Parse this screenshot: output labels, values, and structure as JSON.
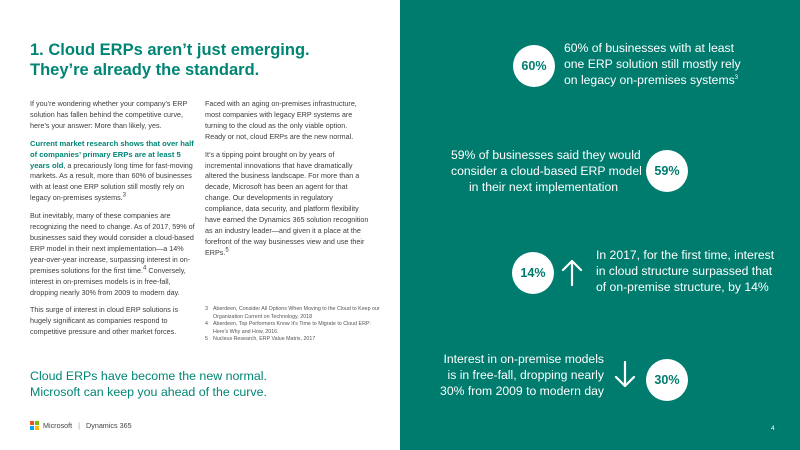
{
  "headline": {
    "line1": "1. Cloud ERPs aren’t just emerging.",
    "line2": "They’re already the standard."
  },
  "col1": {
    "p1": "If you’re wondering whether your company’s ERP solution has fallen behind the competitive curve, here’s your answer: More than likely, yes.",
    "p2_strong": "Current market research shows that over half of companies’ primary ERPs are at least 5 years old",
    "p2_rest": ", a precariously long time for fast-moving markets. As a result, more than 60% of businesses with at least one ERP solution still mostly rely on legacy on-premises systems.",
    "p2_sup": "3",
    "p3": "But inevitably, many of these companies are recognizing the need to change. As of 2017, 59% of businesses said they would consider a cloud-based ERP model in their next implementation—a 14% year-over-year increase, surpassing interest in on-premises solutions for the first time.",
    "p3_sup": "4",
    "p3_rest": " Conversely, interest in on-premises models is in free-fall, dropping nearly 30% from 2009 to modern day.",
    "p4": "This surge of interest in cloud ERP solutions is hugely significant as companies respond to competitive pressure and other market forces."
  },
  "col2": {
    "p1": "Faced with an aging on-premises infrastructure, most companies with legacy ERP systems are turning to the cloud as the only viable option. Ready or not, cloud ERPs are the new normal.",
    "p2": "It’s a tipping point brought on by years of incremental innovations that have dramatically altered the business landscape. For more than a decade, Microsoft has been an agent for that change. Our developments in regulatory compliance, data security, and platform flexibility have earned the Dynamics 365 solution recognition as an industry leader—and given it a place at the forefront of the way businesses view and use their ERPs.",
    "p2_sup": "5"
  },
  "footnotes": [
    {
      "num": "3",
      "text": "Aberdeen, Consider All Options When Moving to the Cloud to Keep our Organization Current on Technology, 2018"
    },
    {
      "num": "4",
      "text": "Aberdeen, Top Performers Know It’s Time to Migrate to Cloud ERP: Here’s Why and How, 2016."
    },
    {
      "num": "5",
      "text": "Nucleus Research, ERP Value Matrix, 2017"
    }
  ],
  "tagline": {
    "line1": "Cloud ERPs have become the new normal.",
    "line2": "Microsoft can keep you ahead of the curve."
  },
  "footer": {
    "brand": "Microsoft",
    "separator": "|",
    "product": "Dynamics 365",
    "page": "4",
    "logo_colors": [
      "#f25022",
      "#7fba00",
      "#00a4ef",
      "#ffb900"
    ]
  },
  "stats": [
    {
      "value": "60%",
      "lines": [
        "60% of businesses with at least",
        "one ERP solution still mostly rely",
        "on legacy on-premises systems"
      ],
      "sup": "3"
    },
    {
      "value": "59%",
      "lines": [
        "59% of businesses said they would",
        "consider a cloud-based ERP model",
        "in their next implementation"
      ]
    },
    {
      "value": "14%",
      "lines": [
        "In 2017, for the first time, interest",
        "in cloud structure surpassed that",
        "of on-premise structure, by 14%"
      ],
      "arrow": "up-arrow-icon"
    },
    {
      "value": "30%",
      "lines": [
        "Interest in on-premise models",
        "is in free-fall, dropping nearly",
        "30% from 2009 to modern day"
      ],
      "arrow": "down-arrow-icon"
    }
  ],
  "colors": {
    "accent": "#008575",
    "panel": "#007c6e",
    "text": "#3c3c3c"
  }
}
